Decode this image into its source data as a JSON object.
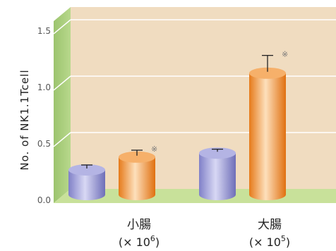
{
  "chart_data": {
    "type": "bar",
    "style": "3d-cylinder",
    "ylabel": "No. of NK1.1Tcell",
    "ylim": [
      0,
      1.5
    ],
    "yticks": [
      "0.0",
      "0.5",
      "1.0",
      "1.5"
    ],
    "categories": [
      "小腸",
      "大腸"
    ],
    "category_units": [
      {
        "prefix": "(× 10",
        "exp": "6",
        "suffix": ")"
      },
      {
        "prefix": "(× 10",
        "exp": "5",
        "suffix": ")"
      }
    ],
    "series": [
      {
        "color": "#9a9ad8",
        "values": [
          0.25,
          0.42
        ],
        "errors": [
          0.05,
          0.04
        ],
        "significance": [
          "",
          ""
        ]
      },
      {
        "color": "#f08c2c",
        "values": [
          0.38,
          1.23
        ],
        "errors": [
          0.07,
          0.18
        ],
        "significance": [
          "※",
          "※"
        ]
      }
    ],
    "wall_color": "#f0dcc0",
    "floor_color": "#c8e19a",
    "side_color": "#a8cc7c",
    "grid": true
  }
}
